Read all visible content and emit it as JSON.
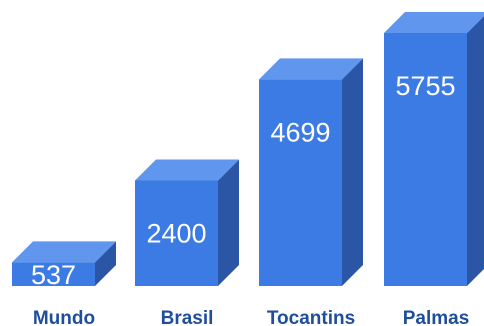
{
  "chart_data": {
    "type": "bar",
    "style": "3d-column",
    "categories": [
      "Mundo",
      "Brasil",
      "Tocantins",
      "Palmas"
    ],
    "values": [
      537,
      2400,
      4699,
      5755
    ],
    "title": "",
    "xlabel": "",
    "ylabel": "",
    "ylim": [
      0,
      6000
    ],
    "grid": false,
    "legend": "none",
    "data_labels": true
  },
  "colors": {
    "bar_front": "#3d7be4",
    "bar_top": "#6196ee",
    "bar_side": "#2b56a6",
    "label_text": "#1f4e9c",
    "value_text": "#ffffff"
  }
}
